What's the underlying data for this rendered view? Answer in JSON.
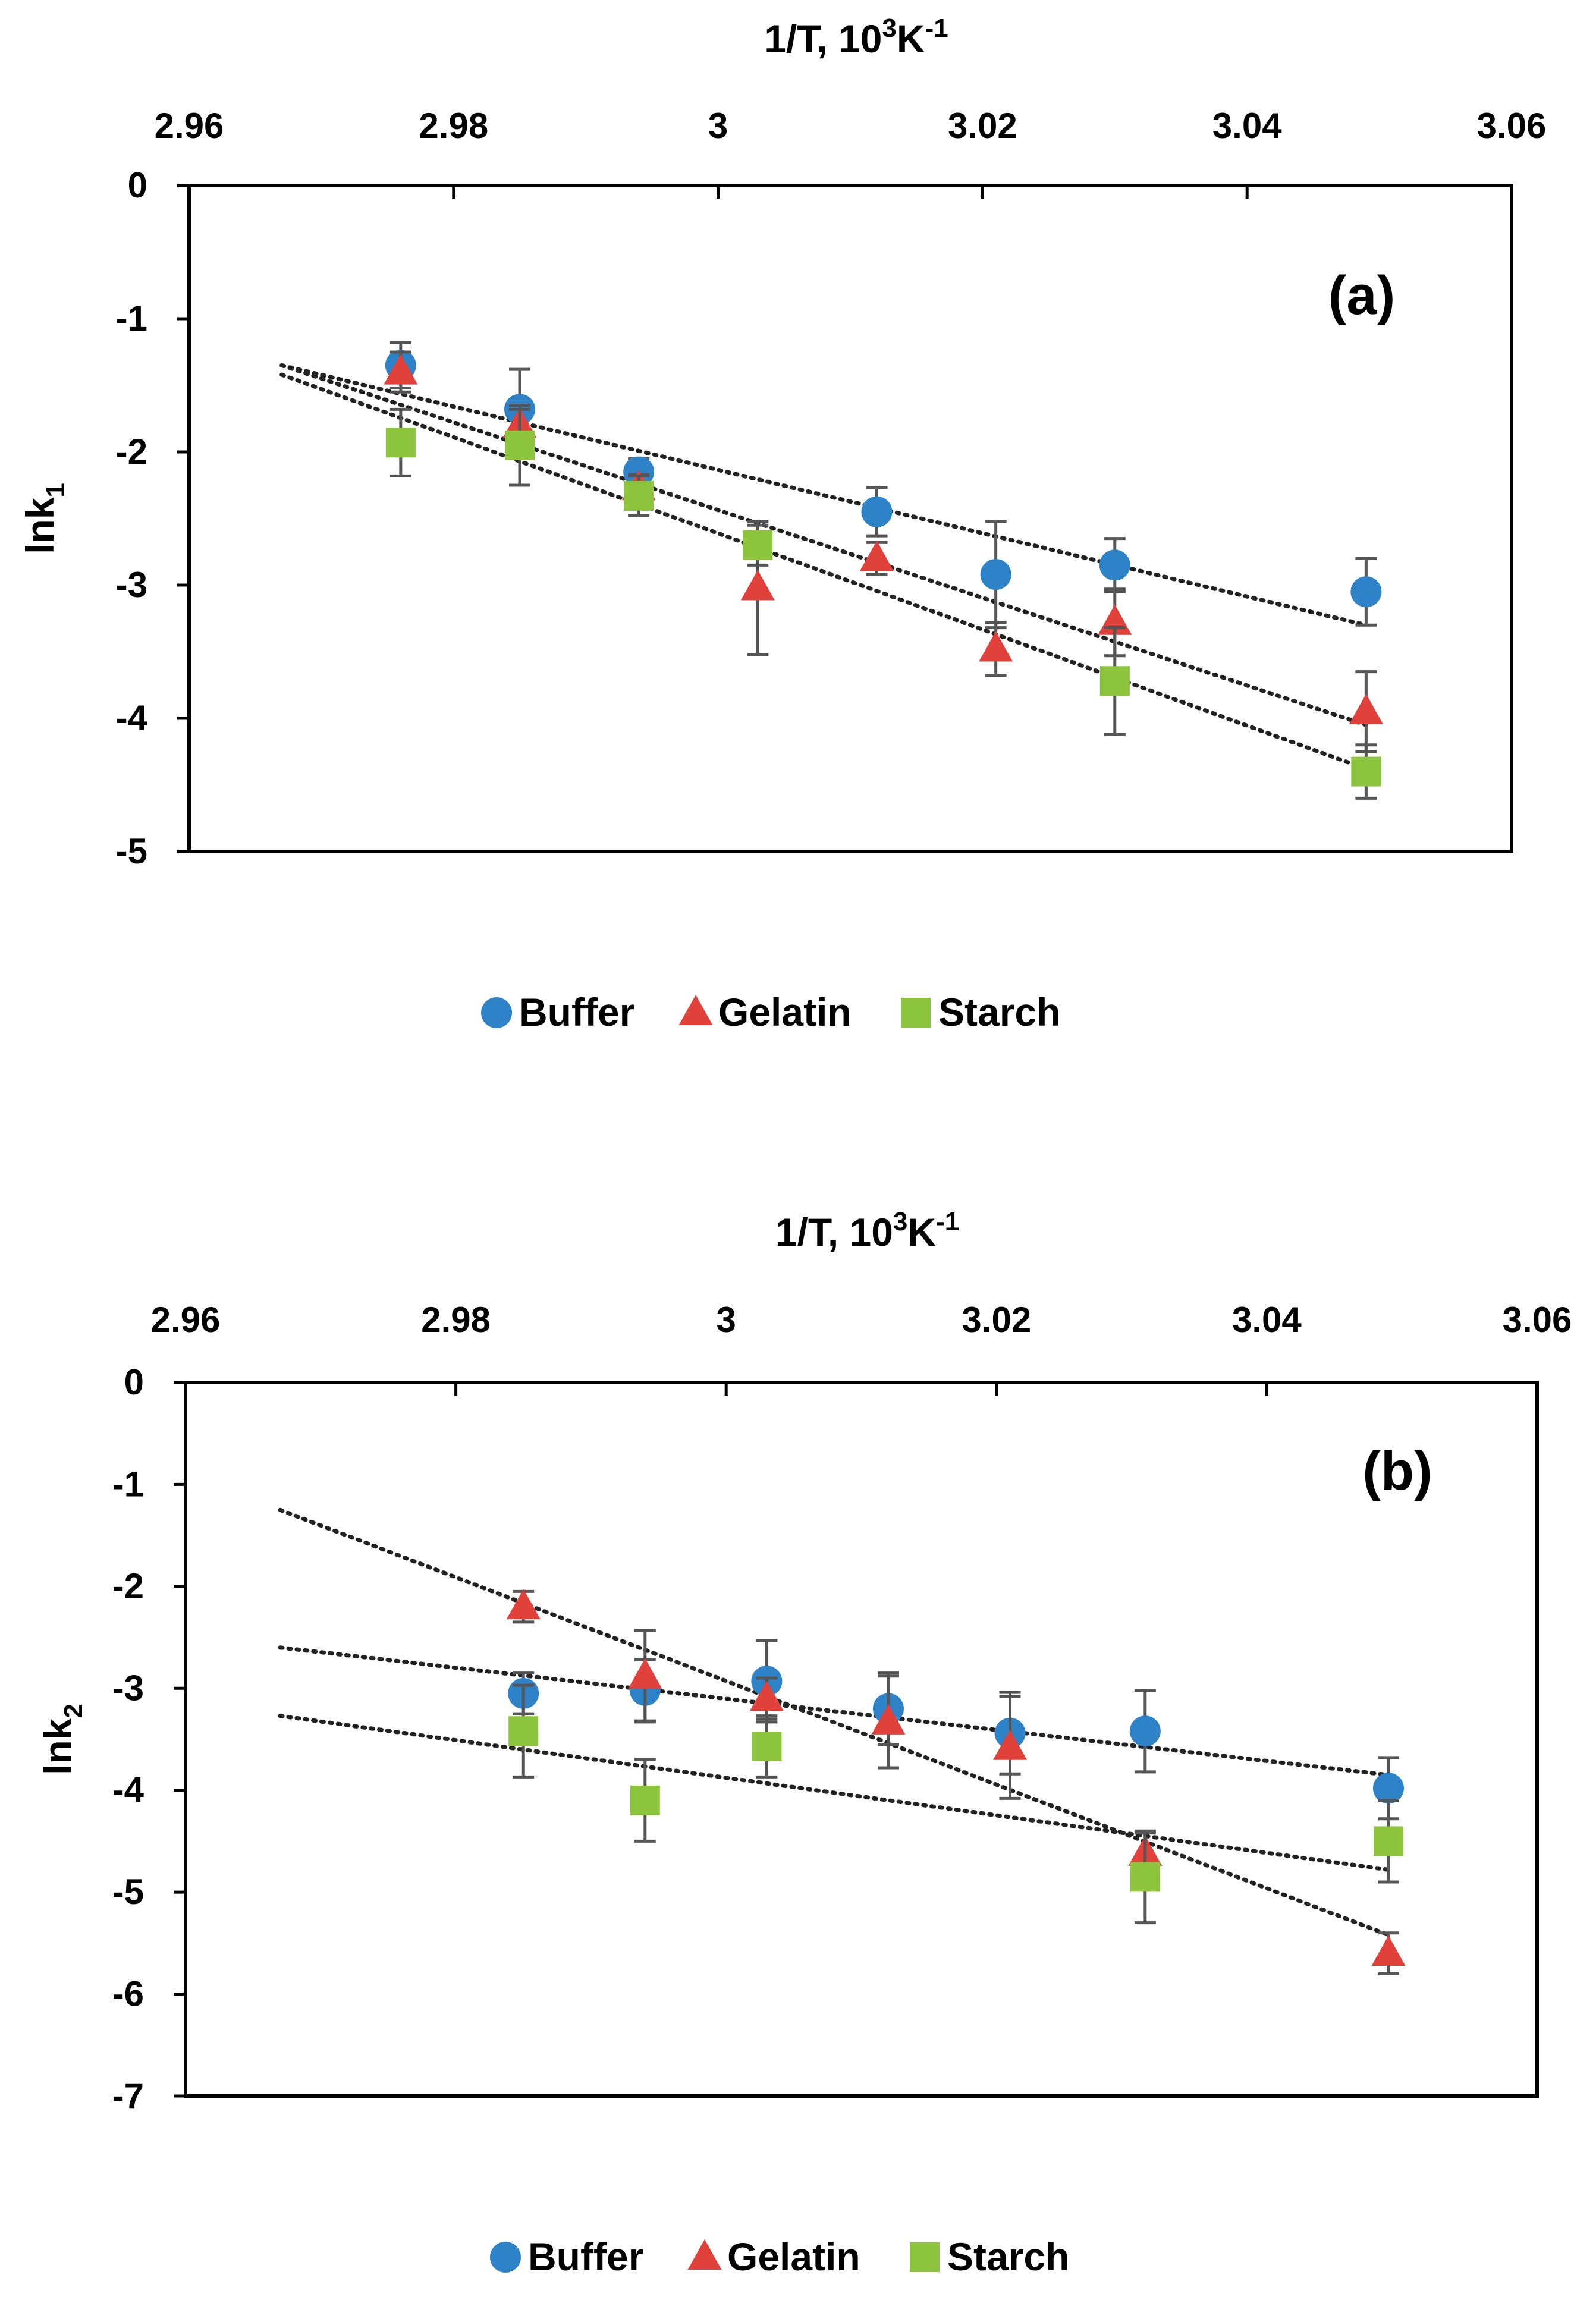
{
  "chart_data": [
    {
      "type": "scatter",
      "panel_label": "(a)",
      "xlabel": {
        "base": "1/T, 10",
        "sup": "3",
        "mid": "K",
        "sup2": "-1"
      },
      "ylabel": {
        "base": "lnk",
        "sub": "1"
      },
      "xlim": [
        2.96,
        3.06
      ],
      "ylim": [
        -5,
        0
      ],
      "x_ticks": [
        2.96,
        2.98,
        3.0,
        3.02,
        3.04,
        3.06
      ],
      "x_tick_labels": [
        "2.96",
        "2.98",
        "3",
        "3.02",
        "3.04",
        "3.06"
      ],
      "y_ticks": [
        0,
        -1,
        -2,
        -3,
        -4,
        -5
      ],
      "y_tick_labels": [
        "0",
        "-1",
        "-2",
        "-3",
        "-4",
        "-5"
      ],
      "x_axis_position": "top",
      "legend_position": "bottom",
      "series": [
        {
          "name": "Buffer",
          "marker": "circle",
          "color": "#2E82C8",
          "x": [
            2.976,
            2.985,
            2.994,
            3.012,
            3.021,
            3.03,
            3.049
          ],
          "y": [
            -1.35,
            -1.68,
            -2.15,
            -2.45,
            -2.92,
            -2.85,
            -3.05
          ],
          "err": [
            0.17,
            0.3,
            0.1,
            0.18,
            0.4,
            0.2,
            0.25
          ],
          "trend": [
            [
              2.967,
              -1.35
            ],
            [
              3.049,
              -3.3
            ]
          ]
        },
        {
          "name": "Gelatin",
          "marker": "triangle",
          "color": "#E0413A",
          "x": [
            2.976,
            2.985,
            2.994,
            3.003,
            3.012,
            3.021,
            3.03,
            3.049
          ],
          "y": [
            -1.4,
            -1.8,
            -2.27,
            -3.02,
            -2.8,
            -3.48,
            -3.28,
            -3.95
          ],
          "err": [
            0.15,
            0.12,
            0.1,
            0.5,
            0.12,
            0.2,
            0.25,
            0.3
          ],
          "trend": [
            [
              2.967,
              -1.35
            ],
            [
              3.049,
              -4.05
            ]
          ]
        },
        {
          "name": "Starch",
          "marker": "square",
          "color": "#8CC43E",
          "x": [
            2.976,
            2.985,
            2.994,
            3.003,
            3.03,
            3.049
          ],
          "y": [
            -1.93,
            -1.95,
            -2.33,
            -2.7,
            -3.72,
            -4.4
          ],
          "err": [
            0.25,
            0.3,
            0.15,
            0.15,
            0.4,
            0.2
          ],
          "trend": [
            [
              2.967,
              -1.42
            ],
            [
              3.049,
              -4.38
            ]
          ]
        }
      ]
    },
    {
      "type": "scatter",
      "panel_label": "(b)",
      "xlabel": {
        "base": "1/T, 10",
        "sup": "3",
        "mid": "K",
        "sup2": "-1"
      },
      "ylabel": {
        "base": "lnk",
        "sub": "2"
      },
      "xlim": [
        2.96,
        3.06
      ],
      "ylim": [
        -7,
        0
      ],
      "x_ticks": [
        2.96,
        2.98,
        3.0,
        3.02,
        3.04,
        3.06
      ],
      "x_tick_labels": [
        "2.96",
        "2.98",
        "3",
        "3.02",
        "3.04",
        "3.06"
      ],
      "y_ticks": [
        0,
        -1,
        -2,
        -3,
        -4,
        -5,
        -6,
        -7
      ],
      "y_tick_labels": [
        "0",
        "-1",
        "-2",
        "-3",
        "-4",
        "-5",
        "-6",
        "-7"
      ],
      "x_axis_position": "top",
      "legend_position": "bottom",
      "series": [
        {
          "name": "Buffer",
          "marker": "circle",
          "color": "#2E82C8",
          "x": [
            2.985,
            2.994,
            3.003,
            3.012,
            3.021,
            3.031,
            3.049
          ],
          "y": [
            -3.05,
            -3.02,
            -2.93,
            -3.2,
            -3.44,
            -3.42,
            -3.98
          ],
          "err": [
            0.2,
            0.3,
            0.4,
            0.35,
            0.4,
            0.4,
            0.3
          ],
          "trend": [
            [
              2.967,
              -2.6
            ],
            [
              3.049,
              -3.85
            ]
          ]
        },
        {
          "name": "Gelatin",
          "marker": "triangle",
          "color": "#E0413A",
          "x": [
            2.985,
            2.994,
            3.003,
            3.012,
            3.021,
            3.031,
            3.049
          ],
          "y": [
            -2.2,
            -2.88,
            -3.1,
            -3.33,
            -3.58,
            -4.62,
            -5.6
          ],
          "err": [
            0.15,
            0.45,
            0.2,
            0.45,
            0.5,
            0.2,
            0.2
          ],
          "trend": [
            [
              2.967,
              -1.25
            ],
            [
              3.049,
              -5.42
            ]
          ]
        },
        {
          "name": "Starch",
          "marker": "square",
          "color": "#8CC43E",
          "x": [
            2.985,
            2.994,
            3.003,
            3.031,
            3.049
          ],
          "y": [
            -3.42,
            -4.1,
            -3.57,
            -4.85,
            -4.5
          ],
          "err": [
            0.45,
            0.4,
            0.3,
            0.45,
            0.4
          ],
          "trend": [
            [
              2.967,
              -3.27
            ],
            [
              3.049,
              -4.78
            ]
          ]
        }
      ]
    }
  ]
}
